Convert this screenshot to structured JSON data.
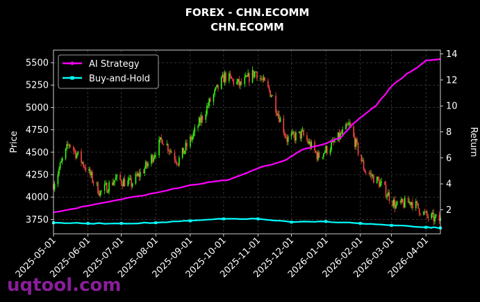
{
  "watermark": "uqtool.com",
  "chart_data": {
    "type": "line",
    "title": "FOREX - CHN.ECOMM",
    "subtitle": "CHN.ECOMM",
    "ylabel": "Price",
    "y2label": "Return",
    "ylim": [
      3590,
      5640
    ],
    "y2lim": [
      0.15,
      14.3
    ],
    "xlim": [
      "2025-05-01",
      "2026-04-14"
    ],
    "grid": true,
    "legend_position": "top-left",
    "x_ticks": [
      "2025-05-01",
      "2025-06-01",
      "2025-07-01",
      "2025-08-01",
      "2025-09-01",
      "2025-10-01",
      "2025-11-01",
      "2025-12-01",
      "2026-01-01",
      "2026-02-01",
      "2026-03-01",
      "2026-04-01"
    ],
    "y_ticks": [
      3750,
      4000,
      4250,
      4500,
      4750,
      5000,
      5250,
      5500
    ],
    "y2_ticks": [
      2,
      4,
      6,
      8,
      10,
      12,
      14
    ],
    "colors": {
      "up": "#39ff14",
      "down": "#ff4444",
      "ai": "#ff00ff",
      "bh": "#00ffff",
      "grid": "#555555"
    },
    "price_series": {
      "name": "Price",
      "x": [
        "2025-05-01",
        "2025-05-15",
        "2025-05-29",
        "2025-06-12",
        "2025-06-26",
        "2025-07-10",
        "2025-07-24",
        "2025-08-07",
        "2025-08-21",
        "2025-09-04",
        "2025-09-18",
        "2025-10-02",
        "2025-10-16",
        "2025-10-30",
        "2025-11-13",
        "2025-11-27",
        "2025-12-11",
        "2025-12-25",
        "2026-01-08",
        "2026-01-22",
        "2026-02-05",
        "2026-02-19",
        "2026-03-05",
        "2026-03-19",
        "2026-04-02",
        "2026-04-14"
      ],
      "values": [
        4150,
        4600,
        4350,
        4050,
        4200,
        4150,
        4350,
        4650,
        4400,
        4700,
        5050,
        5350,
        5250,
        5400,
        5150,
        4650,
        4700,
        4450,
        4600,
        4800,
        4300,
        4150,
        3900,
        3950,
        3780,
        3740
      ]
    },
    "series": [
      {
        "name": "AI Strategy",
        "x": [
          "2025-05-01",
          "2025-06-01",
          "2025-07-01",
          "2025-08-01",
          "2025-09-01",
          "2025-09-25",
          "2025-10-05",
          "2025-11-01",
          "2025-11-25",
          "2025-12-10",
          "2026-01-01",
          "2026-01-15",
          "2026-01-25",
          "2026-02-01",
          "2026-02-15",
          "2026-03-01",
          "2026-03-15",
          "2026-03-25",
          "2026-04-01",
          "2026-04-14"
        ],
        "values": [
          1.8,
          2.3,
          2.8,
          3.3,
          3.9,
          4.2,
          4.3,
          5.2,
          5.8,
          6.6,
          7.1,
          7.6,
          8.6,
          9.1,
          10.0,
          11.5,
          12.5,
          13.0,
          13.5,
          13.6
        ]
      },
      {
        "name": "Buy-and-Hold",
        "x": [
          "2025-05-01",
          "2025-06-01",
          "2025-07-01",
          "2025-08-01",
          "2025-09-01",
          "2025-10-01",
          "2025-11-01",
          "2025-12-01",
          "2026-01-01",
          "2026-02-01",
          "2026-03-01",
          "2026-04-01",
          "2026-04-14"
        ],
        "values": [
          1.0,
          0.95,
          0.95,
          1.0,
          1.15,
          1.3,
          1.3,
          1.05,
          1.1,
          0.95,
          0.8,
          0.65,
          0.6
        ]
      }
    ]
  }
}
